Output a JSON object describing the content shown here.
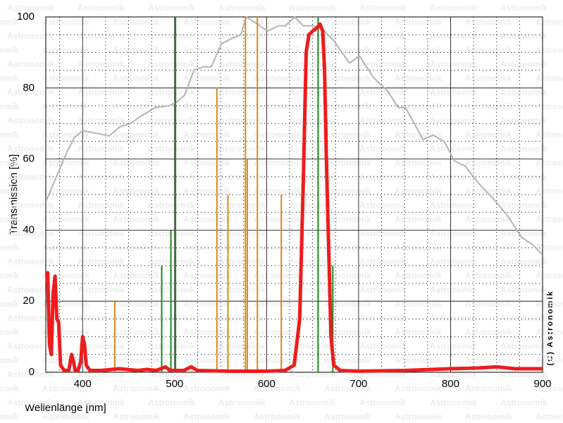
{
  "chart_data": {
    "type": "spectrum",
    "xlabel": "Wellenlänge [nm]",
    "ylabel": "Transmission [%]",
    "watermark": "Astronomik",
    "copyright": "(C) Astronomik",
    "xlim": [
      360,
      900
    ],
    "ylim": [
      0,
      100
    ],
    "xticks": [
      400,
      500,
      600,
      700,
      800,
      900
    ],
    "yticks": [
      0,
      20,
      40,
      60,
      80,
      100
    ],
    "grid": true,
    "series": [
      {
        "style": "line",
        "color": "#b4b4b4",
        "x": [
          360,
          371.5,
          383,
          391,
          400,
          410,
          429,
          440,
          452,
          463,
          479,
          494,
          502,
          511,
          521,
          532,
          540,
          551,
          563,
          572,
          578,
          590,
          601,
          613,
          620.5,
          630.5,
          640,
          651,
          663,
          674,
          682,
          690,
          701,
          716,
          732,
          743,
          751,
          770,
          781,
          793,
          804,
          816,
          831,
          846,
          862,
          877,
          889,
          900
        ],
        "values": [
          48,
          55,
          62,
          66,
          68,
          67.5,
          66.5,
          69,
          70,
          72,
          74.5,
          75,
          76,
          78,
          85,
          86,
          86,
          92.5,
          94,
          95,
          100,
          98,
          96,
          97.5,
          97.5,
          100,
          97.5,
          97.5,
          96,
          93,
          90,
          87,
          89,
          83,
          79,
          74.5,
          74.5,
          65.5,
          66.7,
          65,
          59.5,
          58,
          53,
          49,
          44,
          38,
          36,
          33
        ]
      },
      {
        "style": "stem",
        "color": "#1a8a1a",
        "x": [
          486,
          496,
          501,
          656,
          672
        ],
        "values": [
          30,
          40,
          100,
          100,
          30
        ]
      },
      {
        "style": "stem",
        "color": "#d88a1a",
        "x": [
          435,
          546,
          558,
          577,
          579,
          590,
          616
        ],
        "values": [
          20,
          80,
          50,
          100,
          60,
          100,
          50
        ]
      },
      {
        "style": "thick",
        "color": "#ee1c1c",
        "x": [
          360,
          362,
          364,
          366,
          368,
          370,
          372,
          374,
          376,
          380,
          385,
          388,
          390,
          392,
          395,
          398,
          400,
          402,
          404,
          408,
          420,
          440,
          460,
          470,
          480,
          490,
          495,
          510,
          518,
          525,
          560,
          600,
          620,
          630,
          636,
          640,
          643,
          646,
          650,
          655,
          658,
          661,
          663,
          665,
          668,
          670,
          673,
          680,
          700,
          750,
          800,
          830,
          850,
          870,
          900
        ],
        "values": [
          25,
          28,
          8,
          5,
          22,
          27,
          15,
          14,
          2,
          0.5,
          0.5,
          5,
          3,
          0.5,
          0.5,
          3,
          10,
          8,
          2,
          0.5,
          0.5,
          1,
          0.5,
          0.8,
          0.5,
          1.5,
          0.5,
          0.5,
          1.5,
          0.5,
          0.3,
          0.3,
          0.5,
          2,
          15,
          55,
          90,
          95,
          96,
          97,
          98,
          96,
          85,
          60,
          30,
          10,
          2,
          0.5,
          0.3,
          0.5,
          1,
          1.2,
          1.5,
          1,
          1
        ]
      }
    ]
  }
}
